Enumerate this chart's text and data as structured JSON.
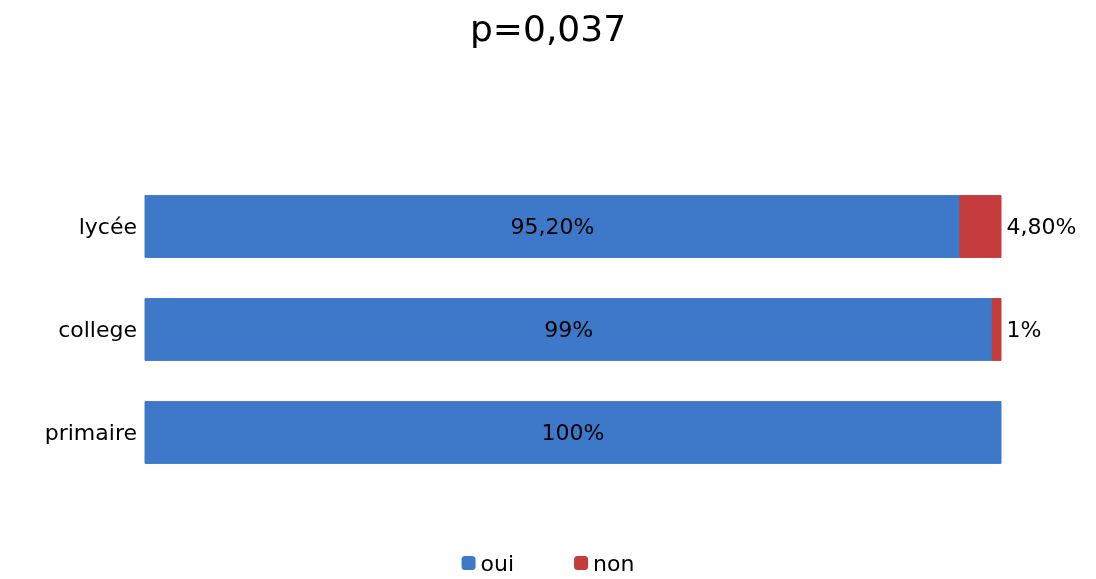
{
  "chart_data": {
    "type": "bar",
    "title": "p=0,037",
    "orientation": "horizontal",
    "stacked": true,
    "categories": [
      "lycée",
      "college",
      "primaire"
    ],
    "series": [
      {
        "name": "oui",
        "color": "#3d78c9",
        "values": [
          95.2,
          99,
          100
        ],
        "value_labels": [
          "95,20%",
          "99%",
          "100%"
        ]
      },
      {
        "name": "non",
        "color": "#c63b3b",
        "values": [
          4.8,
          1,
          null
        ],
        "value_labels": [
          "4,80%",
          "1%",
          null
        ]
      }
    ],
    "xlim": [
      0,
      100
    ],
    "tick_labels": "y",
    "grid": false,
    "legend": "bottom"
  }
}
